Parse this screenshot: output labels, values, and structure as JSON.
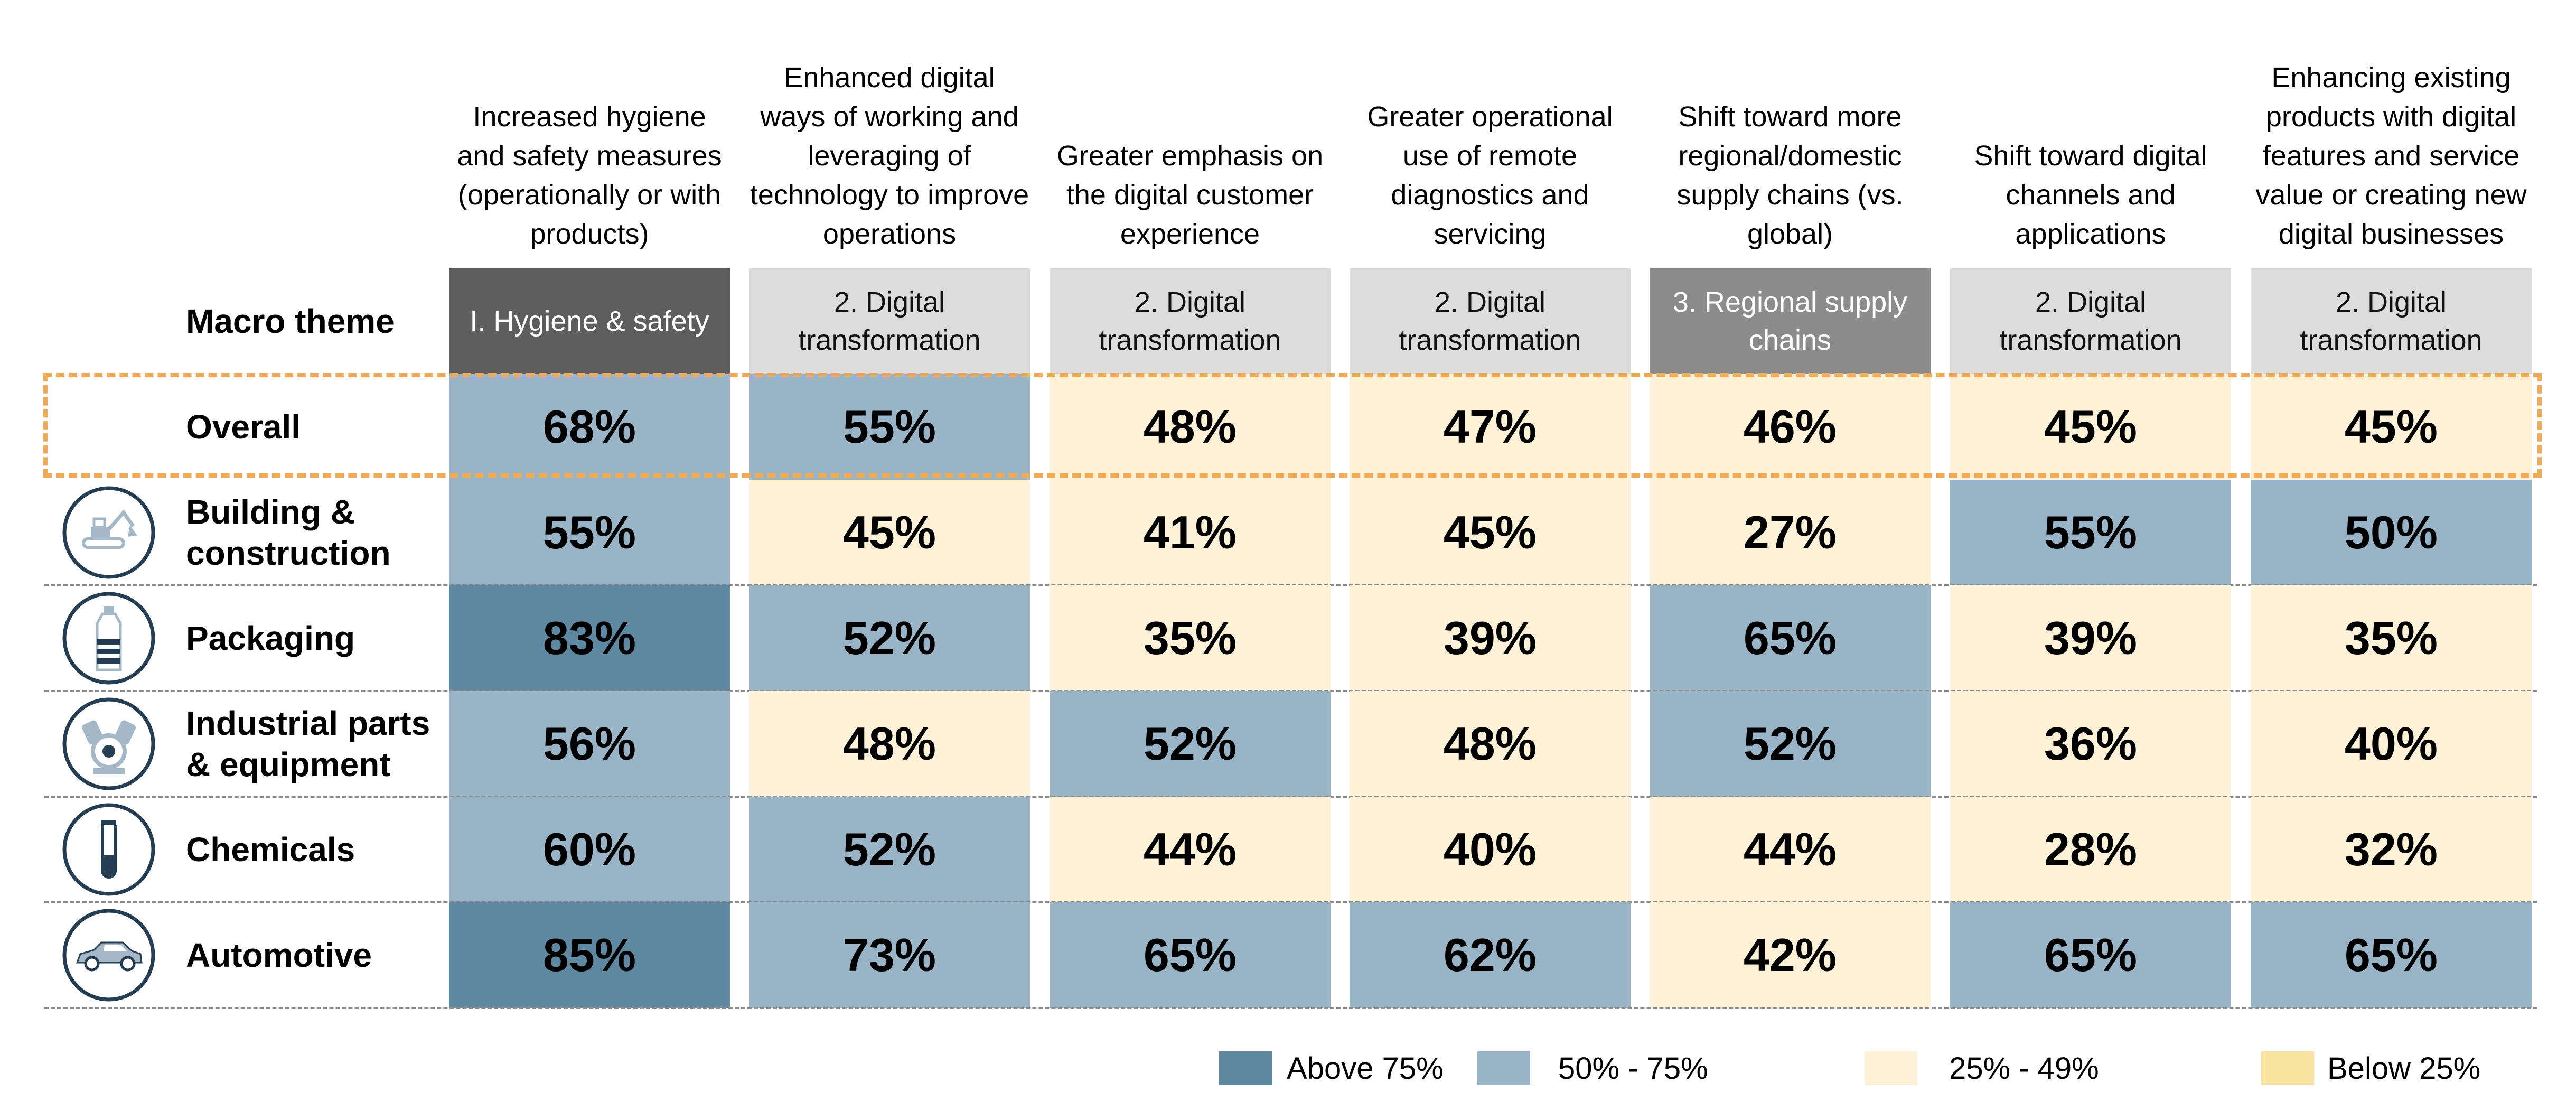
{
  "chart_data": {
    "type": "table",
    "row_header_label": "Macro theme",
    "columns": [
      {
        "header": "Increased hygiene and safety measures (operationally or with products)",
        "theme": "I. Hygiene & safety",
        "theme_key": "hygiene"
      },
      {
        "header": "Enhanced digital ways of working and leveraging of technology to improve operations",
        "theme": "2. Digital transformation",
        "theme_key": "digital"
      },
      {
        "header": "Greater emphasis on the digital customer experience",
        "theme": "2. Digital transformation",
        "theme_key": "digital"
      },
      {
        "header": "Greater operational use of remote diagnostics and servicing",
        "theme": "2. Digital transformation",
        "theme_key": "digital"
      },
      {
        "header": "Shift toward more regional/domestic supply chains (vs. global)",
        "theme": "3. Regional supply chains",
        "theme_key": "regional"
      },
      {
        "header": "Shift toward digital channels and applications",
        "theme": "2. Digital transformation",
        "theme_key": "digital"
      },
      {
        "header": "Enhancing existing products with digital features and service value or creating new digital businesses",
        "theme": "2. Digital transformation",
        "theme_key": "digital"
      }
    ],
    "rows": [
      {
        "label": "Overall",
        "icon": "none",
        "values": [
          68,
          55,
          48,
          47,
          46,
          45,
          45
        ]
      },
      {
        "label": "Building & construction",
        "icon": "excavator-icon",
        "values": [
          55,
          45,
          41,
          45,
          27,
          55,
          50
        ]
      },
      {
        "label": "Packaging",
        "icon": "bottle-icon",
        "values": [
          83,
          52,
          35,
          39,
          65,
          39,
          35
        ]
      },
      {
        "label": "Industrial parts & equipment",
        "icon": "engine-icon",
        "values": [
          56,
          48,
          52,
          48,
          52,
          36,
          40
        ]
      },
      {
        "label": "Chemicals",
        "icon": "test-tube-icon",
        "values": [
          60,
          52,
          44,
          40,
          44,
          28,
          32
        ]
      },
      {
        "label": "Automotive",
        "icon": "car-icon",
        "values": [
          85,
          73,
          65,
          62,
          42,
          65,
          65
        ]
      }
    ],
    "value_suffix": "%",
    "highlighted_row": "Overall",
    "legend": [
      {
        "label": "Above 75%",
        "color": "#5f88a3"
      },
      {
        "label": "50% - 75%",
        "color": "#99b3c7"
      },
      {
        "label": "25% - 49%",
        "color": "#fdf2d8"
      },
      {
        "label": "Below  25%",
        "color": "#f8e39e"
      }
    ]
  },
  "colors": {
    "above75": "#5f88a3",
    "range50_75": "#99b3c7",
    "range25_49": "#fdf2d8",
    "below25": "#f8e39e",
    "theme_hygiene": "#5e5e5e",
    "theme_regional": "#8c8c8c",
    "theme_digital": "#dcdcdc",
    "highlight_border": "#f0aa55",
    "icon_stroke": "#253d52",
    "icon_fill": "#a4b8c7"
  }
}
